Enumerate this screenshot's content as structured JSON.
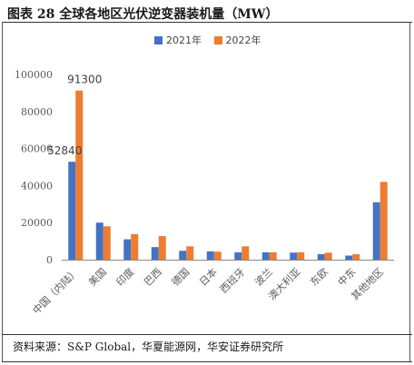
{
  "title": "图表 28 全球各地区光伏逆变器装机量（MW）",
  "source": "资料来源：S&P Global，华夏能源网，华安证券研究所",
  "colors": {
    "s2021": "#4472C4",
    "s2022": "#ED7D31",
    "axis": "#888888",
    "text": "#595959"
  },
  "chart_data": {
    "type": "bar",
    "categories": [
      "中国（内陆）",
      "美国",
      "印度",
      "巴西",
      "德国",
      "日本",
      "西班牙",
      "波兰",
      "澳大利亚",
      "东欧",
      "中东",
      "其他地区"
    ],
    "series": [
      {
        "name": "2021年",
        "values": [
          52840,
          20000,
          11000,
          6800,
          4800,
          4500,
          4000,
          4000,
          3800,
          3000,
          2200,
          31000
        ]
      },
      {
        "name": "2022年",
        "values": [
          91300,
          18000,
          13800,
          12700,
          7200,
          4300,
          7200,
          4000,
          4000,
          3800,
          3000,
          42000
        ]
      }
    ],
    "data_labels": [
      {
        "series": 0,
        "index": 0,
        "text": "52840"
      },
      {
        "series": 1,
        "index": 0,
        "text": "91300"
      }
    ],
    "yticks": [
      "0",
      "20000",
      "40000",
      "60000",
      "80000",
      "100000"
    ],
    "ylim": [
      0,
      100000
    ],
    "legend_position": "top-center",
    "grid": false
  }
}
